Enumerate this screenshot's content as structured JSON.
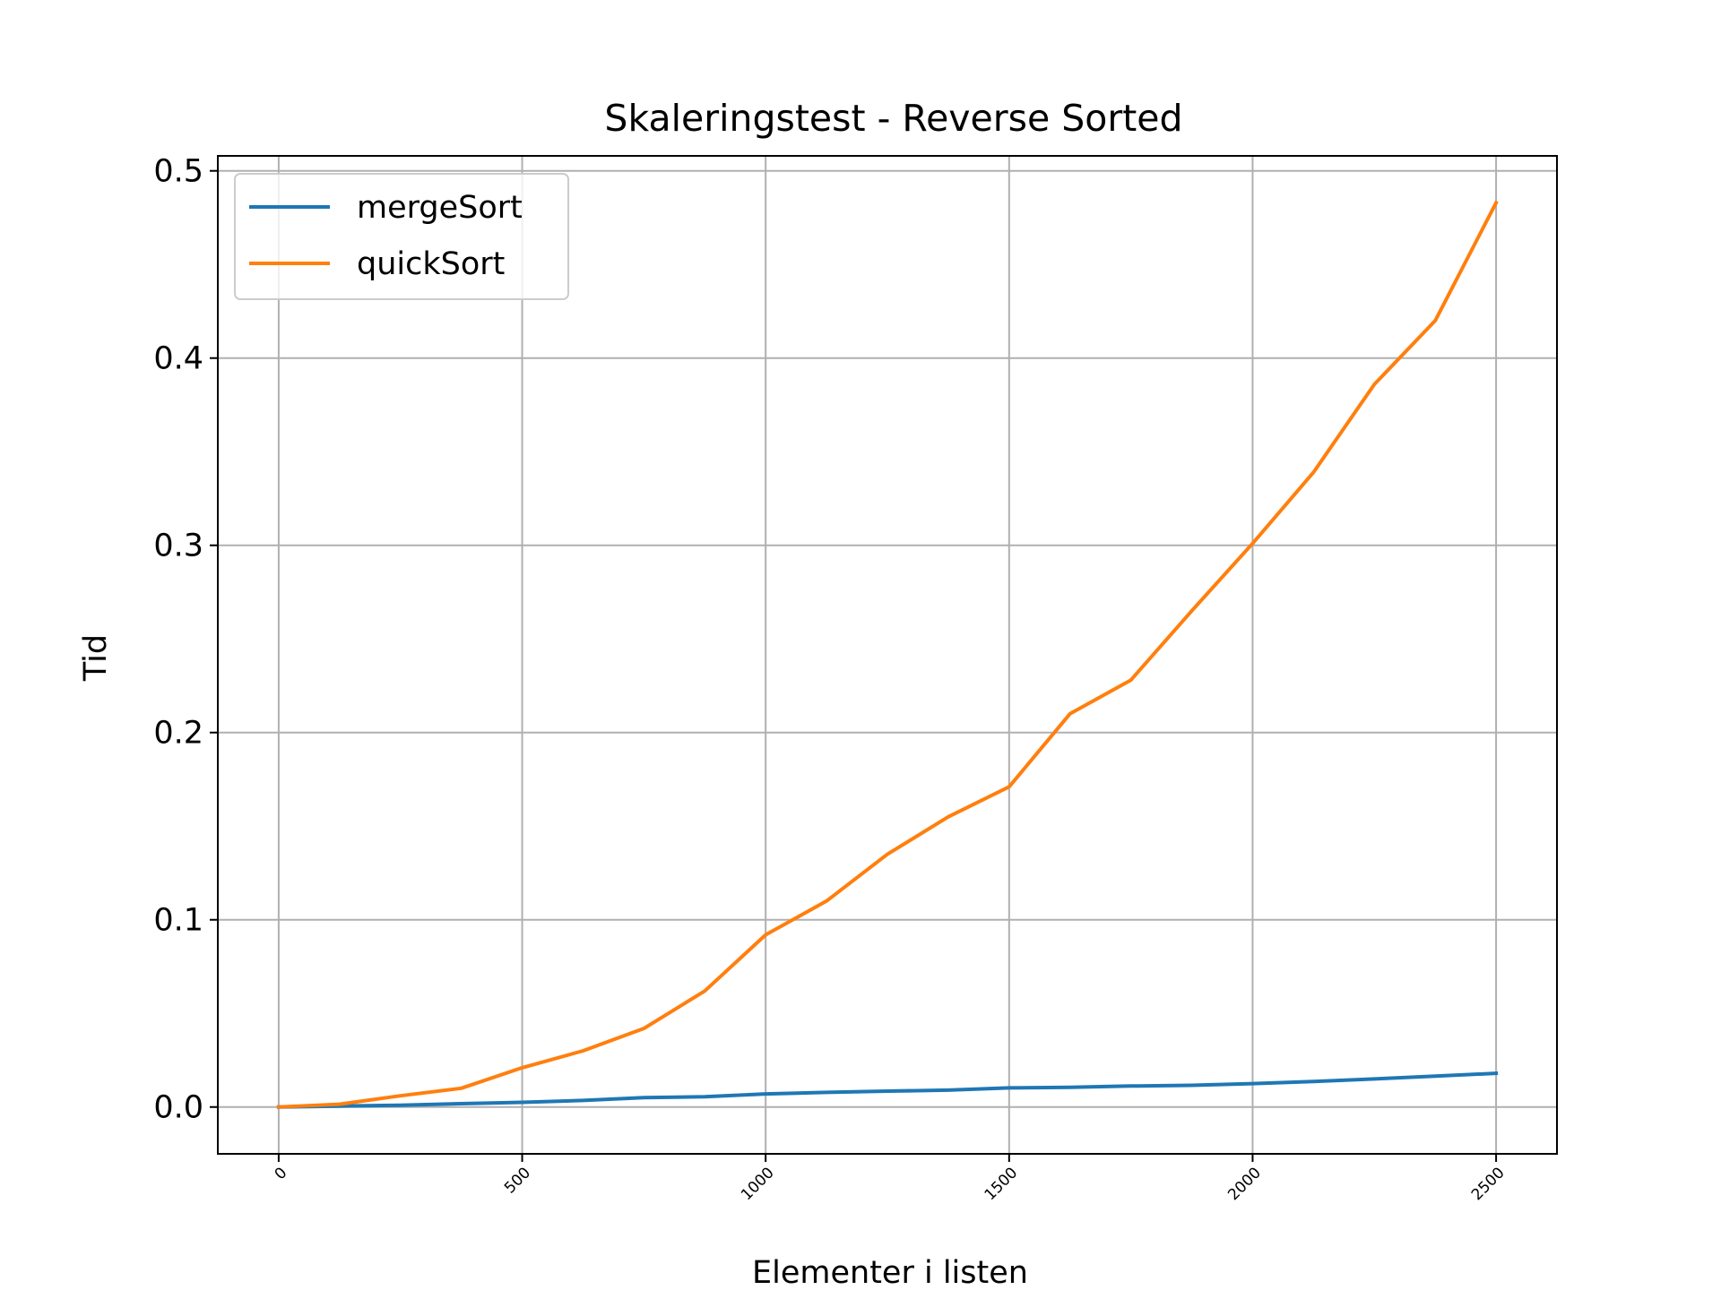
{
  "chart_data": {
    "type": "line",
    "title": "Skaleringstest - Reverse Sorted",
    "xlabel": "Elementer i listen",
    "ylabel": "Tid",
    "x": [
      0,
      125,
      250,
      375,
      500,
      625,
      750,
      875,
      1000,
      1125,
      1250,
      1375,
      1500,
      1625,
      1750,
      1875,
      2000,
      2125,
      2250,
      2375,
      2500
    ],
    "series": [
      {
        "name": "mergeSort",
        "color": "#1f77b4",
        "values": [
          0.0,
          0.0005,
          0.001,
          0.0018,
          0.0025,
          0.0035,
          0.005,
          0.0055,
          0.007,
          0.0078,
          0.0085,
          0.009,
          0.0102,
          0.0105,
          0.0112,
          0.0116,
          0.0125,
          0.0136,
          0.015,
          0.0165,
          0.018
        ]
      },
      {
        "name": "quickSort",
        "color": "#ff7f0e",
        "values": [
          0.0,
          0.0015,
          0.006,
          0.01,
          0.021,
          0.03,
          0.042,
          0.062,
          0.092,
          0.11,
          0.135,
          0.155,
          0.171,
          0.21,
          0.228,
          0.265,
          0.301,
          0.339,
          0.386,
          0.42,
          0.483
        ]
      }
    ],
    "xlim": [
      -125,
      2625
    ],
    "ylim": [
      -0.025,
      0.508
    ],
    "xticks": [
      0,
      500,
      1000,
      1500,
      2000,
      2500
    ],
    "yticks": [
      0.0,
      0.1,
      0.2,
      0.3,
      0.4,
      0.5
    ],
    "ytick_labels": [
      "0.0",
      "0.1",
      "0.2",
      "0.3",
      "0.4",
      "0.5"
    ],
    "xtick_labels": [
      "0",
      "500",
      "1000",
      "1500",
      "2000",
      "2500"
    ],
    "grid": true,
    "legend_position": "top-left"
  }
}
